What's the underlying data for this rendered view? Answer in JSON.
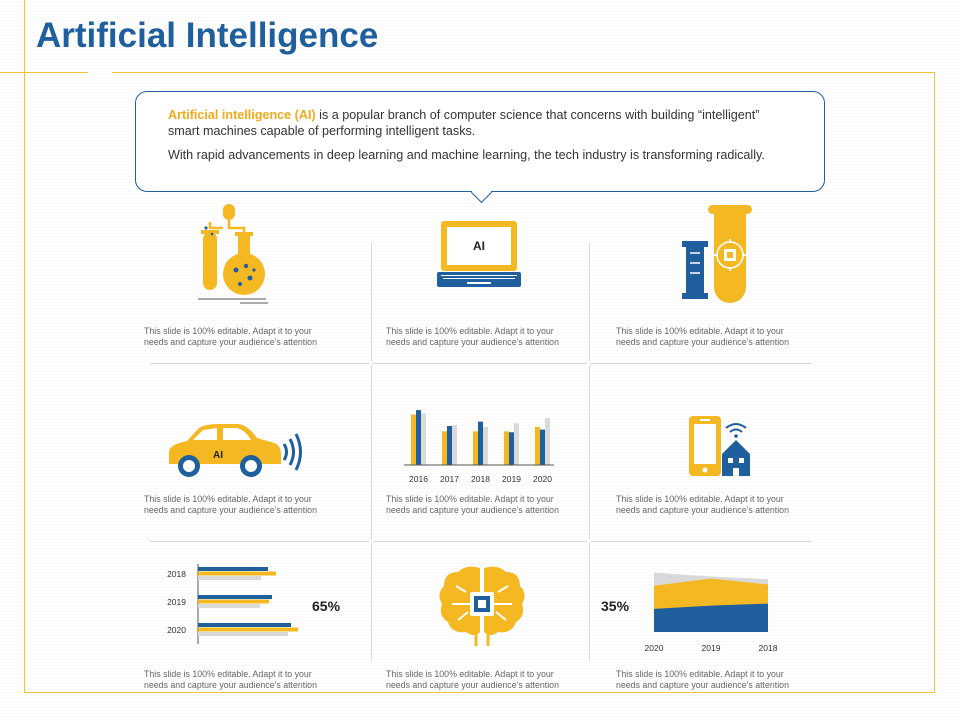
{
  "title": "Artificial Intelligence",
  "intro": {
    "highlight": "Artificial intelligence (AI)",
    "line1_rest": " is a popular branch of computer science that concerns with building “intelligent” smart machines capable of performing intelligent tasks.",
    "line2": "With rapid advancements in deep learning and machine learning, the tech industry is transforming radically."
  },
  "captions": {
    "line1": "This slide is 100% editable. Adapt it to your",
    "line2": "needs and capture your audience’s attention"
  },
  "icons": {
    "laptop_text": "AI",
    "car_text": "AI"
  },
  "colors": {
    "blue": "#1f5f9e",
    "yellow": "#f4b822",
    "gray": "#d9d9d9"
  },
  "chart_data": [
    {
      "type": "bar",
      "categories": [
        "2016",
        "2017",
        "2018",
        "2019",
        "2020"
      ],
      "series": [
        {
          "values": [
            57,
            38,
            38,
            38,
            43
          ]
        },
        {
          "values": [
            62,
            44,
            49,
            37,
            40
          ]
        },
        {
          "values": [
            58,
            45,
            43,
            47,
            53
          ]
        }
      ]
    },
    {
      "type": "bar",
      "orientation": "horizontal",
      "categories": [
        "2018",
        "2019",
        "2020"
      ],
      "series": [
        {
          "values": [
            70,
            74,
            93
          ]
        },
        {
          "values": [
            78,
            71,
            100
          ]
        },
        {
          "values": [
            63,
            62,
            90
          ]
        }
      ],
      "annotation": "65%"
    },
    {
      "type": "area",
      "categories": [
        "2020",
        "2019",
        "2018"
      ],
      "series": [
        {
          "values": [
            35,
            40,
            43
          ]
        },
        {
          "values": [
            70,
            81,
            72
          ]
        },
        {
          "values": [
            90,
            84,
            80
          ]
        }
      ],
      "annotation": "35%"
    }
  ]
}
